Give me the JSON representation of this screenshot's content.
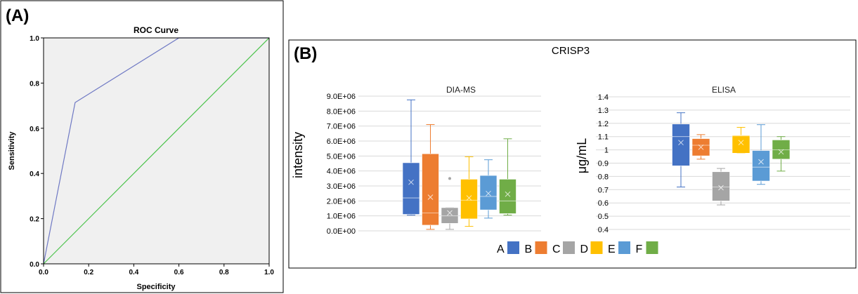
{
  "panel_a_label": "(A)",
  "panel_b_label": "(B)",
  "chart_data": [
    {
      "type": "line",
      "title": "ROC Curve",
      "xlabel": "Specificity",
      "ylabel": "Sensitivity",
      "xlim": [
        0,
        1
      ],
      "ylim": [
        0,
        1
      ],
      "xticks": [
        "0.0",
        "0.2",
        "0.4",
        "0.6",
        "0.8",
        "1.0"
      ],
      "yticks": [
        "0.0",
        "0.2",
        "0.4",
        "0.6",
        "0.8",
        "1.0"
      ],
      "grid": false,
      "background": "#f0f0f0",
      "series": [
        {
          "color": "#6f79c4",
          "x": [
            0,
            0.14,
            0.6,
            1.0
          ],
          "y": [
            0,
            0.714,
            1.0,
            1.0
          ]
        },
        {
          "color": "#4cc34c",
          "x": [
            0,
            1.0
          ],
          "y": [
            0,
            1.0
          ]
        }
      ]
    },
    {
      "type": "box",
      "main_title": "CRISP3",
      "title": "DIA-MS",
      "ylabel": "intensity",
      "ylim": [
        0,
        9000000
      ],
      "yticks": [
        "0.0E+00",
        "1.0E+06",
        "2.0E+06",
        "3.0E+06",
        "4.0E+06",
        "5.0E+06",
        "6.0E+06",
        "7.0E+06",
        "8.0E+06",
        "9.0E+06"
      ],
      "grid": true,
      "boxes": [
        {
          "name": "A",
          "color": "#4472c4",
          "min": 1050000,
          "q1": 1100000,
          "median": 2200000,
          "mean": 3250000,
          "q3": 4550000,
          "max": 8750000,
          "outliers": []
        },
        {
          "name": "B",
          "color": "#ed7d31",
          "min": 100000,
          "q1": 380000,
          "median": 1200000,
          "mean": 2250000,
          "q3": 5150000,
          "max": 7100000,
          "outliers": []
        },
        {
          "name": "C",
          "color": "#a5a5a5",
          "min": 100000,
          "q1": 500000,
          "median": 1000000,
          "mean": 1200000,
          "q3": 1550000,
          "max": 1550000,
          "outliers": [
            3500000
          ]
        },
        {
          "name": "D",
          "color": "#ffc000",
          "min": 300000,
          "q1": 800000,
          "median": 2050000,
          "mean": 2200000,
          "q3": 3450000,
          "max": 4950000,
          "outliers": []
        },
        {
          "name": "E",
          "color": "#5b9bd5",
          "min": 850000,
          "q1": 1400000,
          "median": 2300000,
          "mean": 2500000,
          "q3": 3700000,
          "max": 4750000,
          "outliers": []
        },
        {
          "name": "F",
          "color": "#70ad47",
          "min": 1050000,
          "q1": 1150000,
          "median": 2000000,
          "mean": 2450000,
          "q3": 3450000,
          "max": 6150000,
          "outliers": []
        }
      ]
    },
    {
      "type": "box",
      "title": "ELISA",
      "ylabel": "μg/mL",
      "ylim": [
        0.4,
        1.4
      ],
      "yticks": [
        "0.4",
        "0.5",
        "0.6",
        "0.7",
        "0.8",
        "0.9",
        "1",
        "1.1",
        "1.2",
        "1.3",
        "1.4"
      ],
      "grid": true,
      "boxes": [
        {
          "name": "A",
          "color": "#4472c4",
          "min": 0.72,
          "q1": 0.88,
          "median": 1.1,
          "mean": 1.055,
          "q3": 1.195,
          "max": 1.28,
          "outliers": []
        },
        {
          "name": "B",
          "color": "#ed7d31",
          "min": 0.93,
          "q1": 0.955,
          "median": 1.035,
          "mean": 1.02,
          "q3": 1.085,
          "max": 1.115,
          "outliers": []
        },
        {
          "name": "C",
          "color": "#a5a5a5",
          "min": 0.585,
          "q1": 0.615,
          "median": 0.72,
          "mean": 0.715,
          "q3": 0.835,
          "max": 0.86,
          "outliers": []
        },
        {
          "name": "D",
          "color": "#ffc000",
          "min": 0.975,
          "q1": 0.975,
          "median": 1.105,
          "mean": 1.055,
          "q3": 1.11,
          "max": 1.17,
          "outliers": []
        },
        {
          "name": "E",
          "color": "#5b9bd5",
          "min": 0.74,
          "q1": 0.765,
          "median": 0.87,
          "mean": 0.91,
          "q3": 0.995,
          "max": 1.19,
          "outliers": []
        },
        {
          "name": "F",
          "color": "#70ad47",
          "min": 0.84,
          "q1": 0.93,
          "median": 1.0,
          "mean": 0.985,
          "q3": 1.075,
          "max": 1.1,
          "outliers": []
        }
      ]
    }
  ],
  "legend": [
    "A",
    "B",
    "C",
    "D",
    "E",
    "F"
  ]
}
